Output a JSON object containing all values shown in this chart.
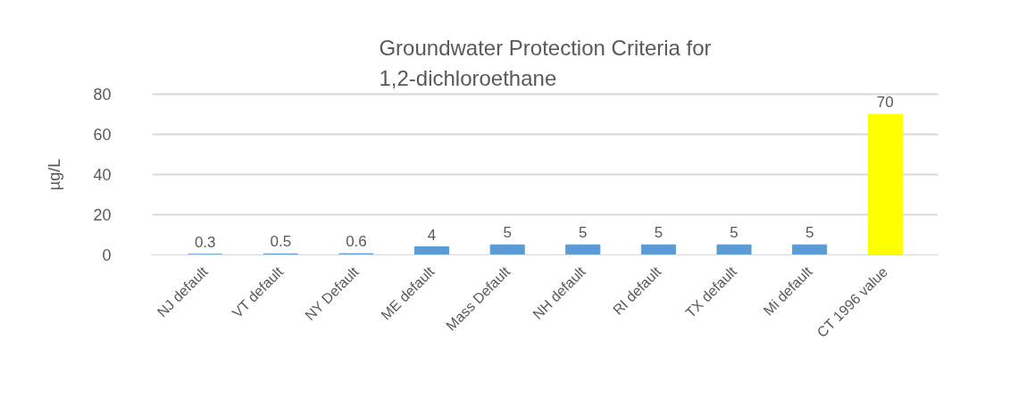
{
  "chart_data": {
    "type": "bar",
    "title": "Groundwater Protection Criteria for 1,2-dichloroethane",
    "ylabel": "µg/L",
    "categories": [
      "NJ default",
      "VT default",
      "NY Default",
      "ME default",
      "Mass Default",
      "NH default",
      "RI default",
      "TX default",
      "Mi default",
      "CT 1996 value"
    ],
    "values": [
      0.3,
      0.5,
      0.6,
      4,
      5,
      5,
      5,
      5,
      5,
      70
    ],
    "colors": [
      "#5b9bd5",
      "#5b9bd5",
      "#5b9bd5",
      "#5b9bd5",
      "#5b9bd5",
      "#5b9bd5",
      "#5b9bd5",
      "#5b9bd5",
      "#5b9bd5",
      "#ffff00"
    ],
    "ylim": [
      0,
      80
    ],
    "yticks": [
      0,
      20,
      40,
      60,
      80
    ],
    "grid": "y",
    "data_labels": true
  }
}
